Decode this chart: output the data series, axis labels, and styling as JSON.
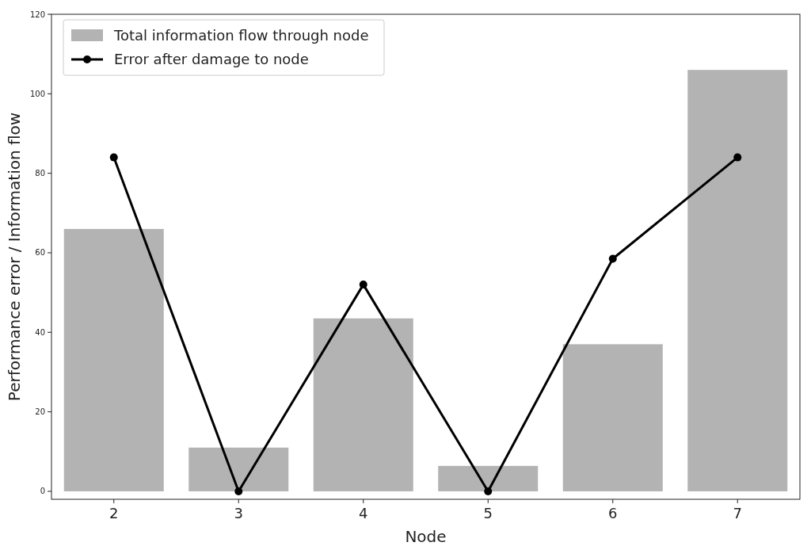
{
  "chart_data": {
    "type": "bar",
    "xlabel": "Node",
    "ylabel": "Performance error / Information flow",
    "categories": [
      "2",
      "3",
      "4",
      "5",
      "6",
      "7"
    ],
    "series": [
      {
        "name": "Total information flow through node",
        "color": "#b3b3b3",
        "values": [
          66,
          11,
          43.5,
          6.4,
          37,
          106
        ]
      },
      {
        "name": "Error after damage to node",
        "type": "line",
        "color": "#000000",
        "values": [
          84,
          0,
          52,
          0,
          58.5,
          84
        ]
      }
    ],
    "ylim": [
      -2,
      120
    ],
    "yticks": [
      0,
      20,
      40,
      60,
      80,
      100,
      120
    ],
    "grid": false,
    "legend": "top left",
    "marker": "circle",
    "line_style": "solid"
  }
}
